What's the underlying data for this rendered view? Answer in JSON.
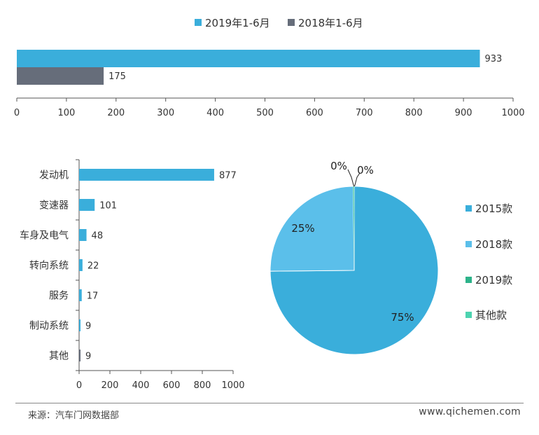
{
  "colors": {
    "blue": "#3aaedb",
    "gray": "#666d7a",
    "light_blue": "#5bbfea",
    "green": "#2db38a",
    "teal": "#4dd3b0",
    "axis": "#555555"
  },
  "chart_data": [
    {
      "type": "bar",
      "orientation": "horizontal",
      "categories": [
        ""
      ],
      "series": [
        {
          "name": "2019年1-6月",
          "values": [
            933
          ]
        },
        {
          "name": "2018年1-6月",
          "values": [
            175
          ]
        }
      ],
      "xlim": [
        0,
        1000
      ],
      "xticks": [
        0,
        100,
        200,
        300,
        400,
        500,
        600,
        700,
        800,
        900,
        1000
      ],
      "data_labels": [
        "933",
        "175"
      ],
      "legend": "top-center",
      "grid": false
    },
    {
      "type": "bar",
      "orientation": "horizontal",
      "categories": [
        "发动机",
        "变速器",
        "车身及电气",
        "转向系统",
        "服务",
        "制动系统",
        "其他"
      ],
      "values": [
        877,
        101,
        48,
        22,
        17,
        9,
        9
      ],
      "data_labels": [
        "877",
        "101",
        "48",
        "22",
        "17",
        "9",
        "9"
      ],
      "xlim": [
        0,
        1000
      ],
      "xticks": [
        0,
        200,
        400,
        600,
        800,
        1000
      ],
      "grid": false
    },
    {
      "type": "pie",
      "labels": [
        "2015款",
        "2018款",
        "2019款",
        "其他款"
      ],
      "values": [
        75,
        25,
        0.1,
        0.1
      ],
      "data_labels": [
        "75%",
        "25%",
        "0%",
        "0%"
      ],
      "legend": "right"
    }
  ],
  "footer": {
    "source": "来源：汽车门网数据部",
    "website": "www.qichemen.com"
  }
}
